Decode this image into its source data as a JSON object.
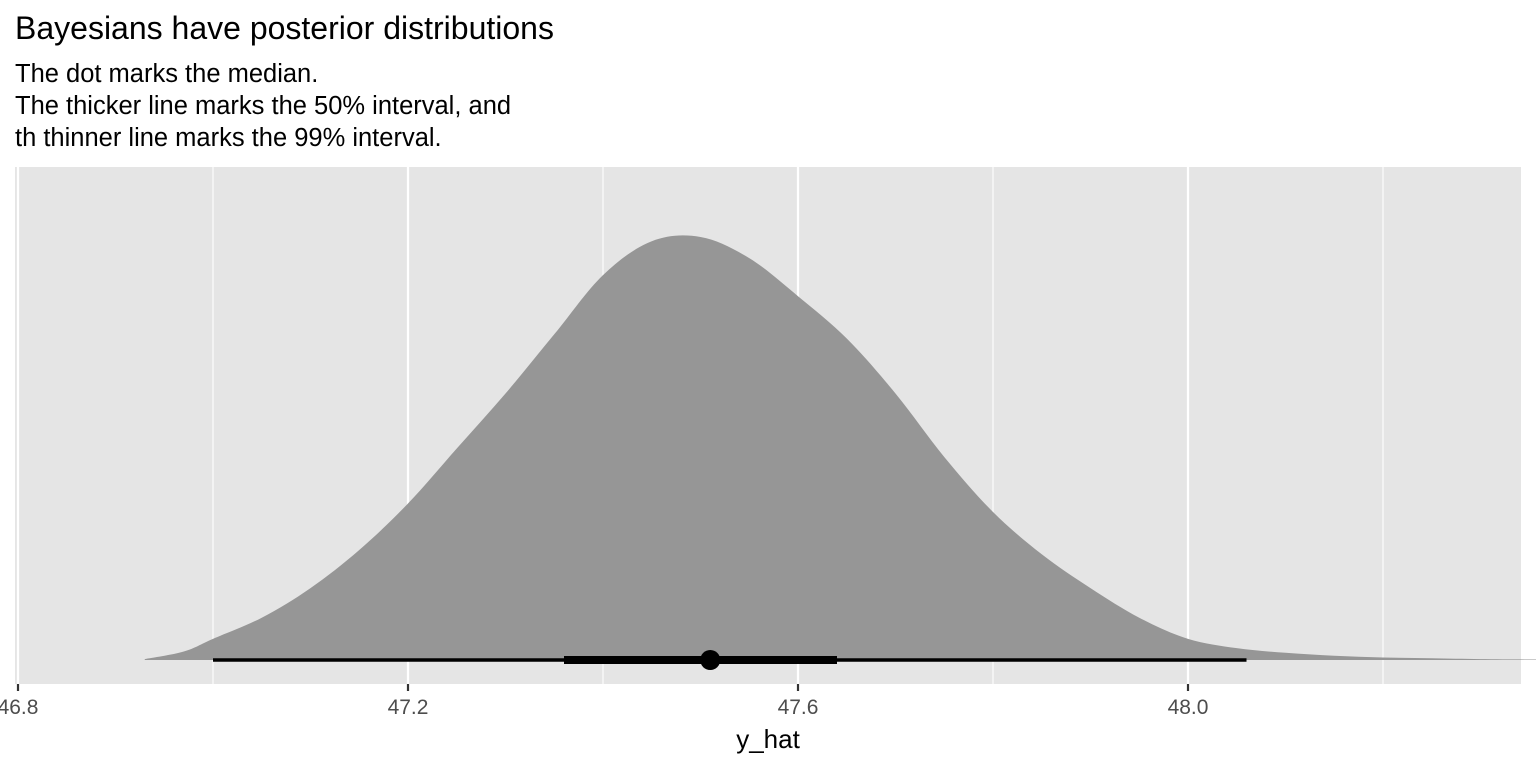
{
  "title": "Bayesians have posterior distributions",
  "subtitle_lines": [
    "The dot marks the median.",
    "The thicker line marks the 50% interval, and",
    "th thinner line marks the 99% interval."
  ],
  "colors": {
    "panel_background": "#e5e5e5",
    "grid": "#ffffff",
    "density_fill": "#969696",
    "interval": "#000000",
    "tick_text": "#4d4d4d"
  },
  "chart_data": {
    "type": "area",
    "title": "Bayesians have posterior distributions",
    "xlabel": "y_hat",
    "ylabel": "",
    "xlim": [
      46.8,
      48.1
    ],
    "x_ticks": [
      46.8,
      47.2,
      47.6,
      48.0
    ],
    "x_tick_labels": [
      "46.8",
      "47.2",
      "47.6",
      "48.0"
    ],
    "y_ticks_shown": false,
    "grid": true,
    "density": {
      "x": [
        46.93,
        46.97,
        47.0,
        47.05,
        47.1,
        47.15,
        47.2,
        47.25,
        47.3,
        47.35,
        47.4,
        47.45,
        47.5,
        47.55,
        47.6,
        47.65,
        47.7,
        47.75,
        47.8,
        47.85,
        47.9,
        47.95,
        48.0,
        48.05,
        48.1,
        48.15,
        48.2,
        48.25,
        48.3,
        48.36
      ],
      "y": [
        0.002,
        0.02,
        0.05,
        0.1,
        0.17,
        0.26,
        0.37,
        0.5,
        0.63,
        0.77,
        0.91,
        0.99,
        1.0,
        0.95,
        0.86,
        0.76,
        0.63,
        0.48,
        0.35,
        0.25,
        0.17,
        0.1,
        0.05,
        0.028,
        0.017,
        0.01,
        0.006,
        0.004,
        0.002,
        0.001
      ]
    },
    "median": 47.51,
    "interval_50": [
      47.36,
      47.64
    ],
    "interval_99": [
      47.0,
      48.06
    ]
  }
}
